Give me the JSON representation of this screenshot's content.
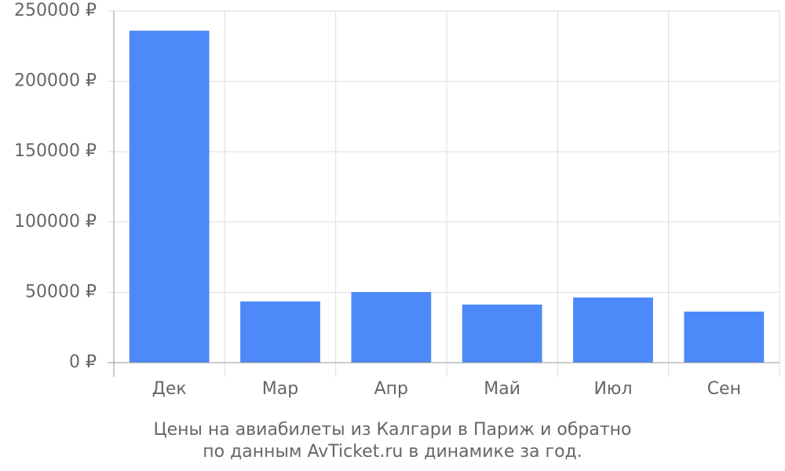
{
  "chart_data": {
    "type": "bar",
    "title": "Цены на авиабилеты из Калгари в Париж и обратно",
    "subtitle": "по данным AvTicket.ru в динамике за год.",
    "categories": [
      "Дек",
      "Мар",
      "Апр",
      "Май",
      "Июл",
      "Сен"
    ],
    "values": [
      236000,
      43500,
      50200,
      41300,
      46300,
      36300
    ],
    "color": "#4d89f9",
    "ylim": [
      0,
      250000
    ],
    "yticks": [
      {
        "value": 0,
        "label": "0 ₽"
      },
      {
        "value": 50000,
        "label": "50000 ₽"
      },
      {
        "value": 100000,
        "label": "100000 ₽"
      },
      {
        "value": 150000,
        "label": "150000 ₽"
      },
      {
        "value": 200000,
        "label": "200000 ₽"
      },
      {
        "value": 250000,
        "label": "250000 ₽"
      }
    ],
    "grid": true
  }
}
